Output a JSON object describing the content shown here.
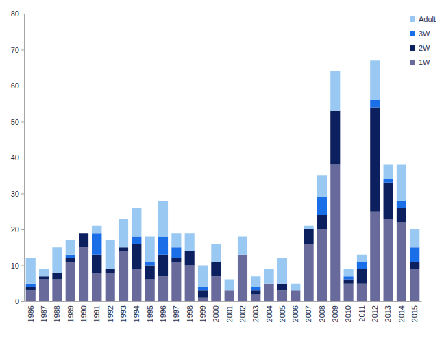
{
  "chart_data": {
    "type": "bar",
    "stacked": true,
    "grid": false,
    "legend": "top-right",
    "categories": [
      "1986",
      "1987",
      "1988",
      "1989",
      "1990",
      "1991",
      "1992",
      "1993",
      "1994",
      "1995",
      "1996",
      "1997",
      "1998",
      "1999",
      "2000",
      "2001",
      "2002",
      "2003",
      "2004",
      "2005",
      "2006",
      "2007",
      "2008",
      "2009",
      "2010",
      "2011",
      "2012",
      "2013",
      "2014",
      "2015"
    ],
    "series": [
      {
        "name": "1W",
        "color": "#686a9c",
        "values": [
          3,
          6,
          6,
          11,
          15,
          8,
          8,
          14,
          9,
          6,
          7,
          11,
          10,
          1,
          7,
          3,
          13,
          2,
          5,
          3,
          3,
          16,
          20,
          38,
          5,
          5,
          25,
          23,
          22,
          9
        ]
      },
      {
        "name": "2W",
        "color": "#0c1f5e",
        "values": [
          1,
          1,
          2,
          1,
          4,
          5,
          1,
          1,
          7,
          4,
          6,
          1,
          4,
          2,
          4,
          0,
          0,
          1,
          0,
          2,
          0,
          4,
          4,
          15,
          1,
          4,
          29,
          10,
          4,
          2
        ]
      },
      {
        "name": "3W",
        "color": "#1a6ee8",
        "values": [
          1,
          0,
          0,
          1,
          0,
          6,
          0,
          0,
          2,
          1,
          5,
          3,
          0,
          1,
          0,
          0,
          0,
          1,
          0,
          0,
          0,
          0,
          5,
          0,
          1,
          2,
          2,
          1,
          2,
          4
        ]
      },
      {
        "name": "Adult",
        "color": "#99c9f2",
        "values": [
          7,
          2,
          7,
          4,
          0,
          2,
          8,
          8,
          8,
          7,
          10,
          4,
          5,
          6,
          5,
          3,
          5,
          3,
          4,
          7,
          2,
          1,
          6,
          11,
          2,
          2,
          11,
          4,
          10,
          5
        ]
      }
    ],
    "ylim": [
      0,
      80
    ],
    "yticks": [
      0,
      10,
      20,
      30,
      40,
      50,
      60,
      70,
      80
    ]
  }
}
